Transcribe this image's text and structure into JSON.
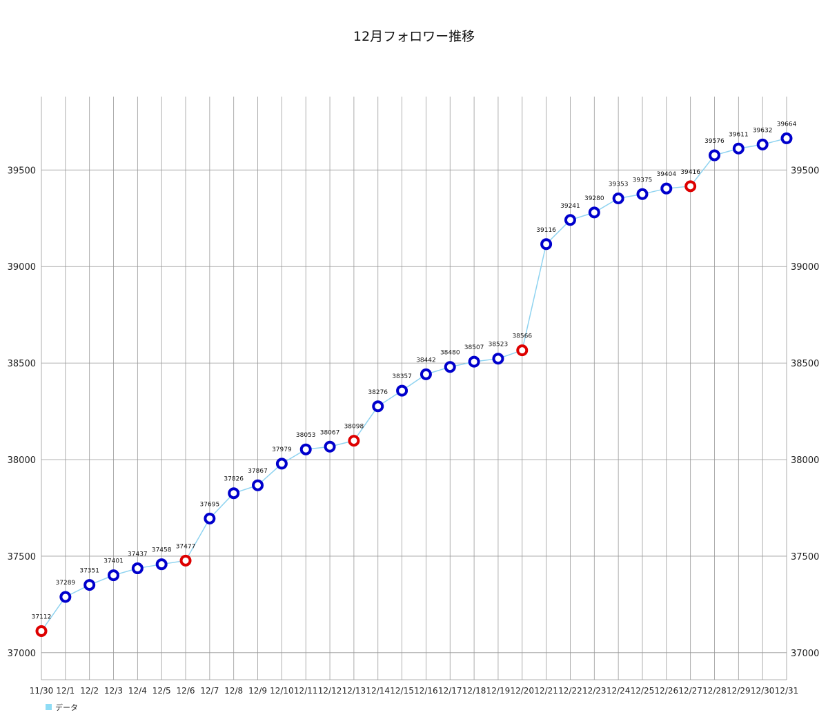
{
  "chart_data": {
    "type": "line",
    "title": "12月フォロワー推移",
    "xlabel": "",
    "ylabel": "",
    "categories": [
      "11/30",
      "12/1",
      "12/2",
      "12/3",
      "12/4",
      "12/5",
      "12/6",
      "12/7",
      "12/8",
      "12/9",
      "12/10",
      "12/11",
      "12/12",
      "12/13",
      "12/14",
      "12/15",
      "12/16",
      "12/17",
      "12/18",
      "12/19",
      "12/20",
      "12/21",
      "12/22",
      "12/23",
      "12/24",
      "12/25",
      "12/26",
      "12/27",
      "12/28",
      "12/29",
      "12/30",
      "12/31"
    ],
    "series": [
      {
        "name": "データ",
        "values": [
          37112,
          37289,
          37351,
          37401,
          37437,
          37458,
          37477,
          37695,
          37826,
          37867,
          37979,
          38053,
          38067,
          38098,
          38276,
          38357,
          38442,
          38480,
          38507,
          38523,
          38566,
          39116,
          39241,
          39280,
          39353,
          39375,
          39404,
          39416,
          39576,
          39611,
          39632,
          39664
        ],
        "highlight_indices": [
          0,
          6,
          13,
          20,
          27
        ]
      }
    ],
    "ylim": [
      36860,
      39880
    ],
    "yticks": [
      37000,
      37500,
      38000,
      38500,
      39000,
      39500
    ],
    "grid": true,
    "legend": "bottom-left",
    "colors": {
      "line": "#8fd3f0",
      "marker": "#0000cc",
      "marker_highlight": "#dd0000",
      "grid": "#999999",
      "legend_swatch": "#8fdcf5"
    }
  }
}
